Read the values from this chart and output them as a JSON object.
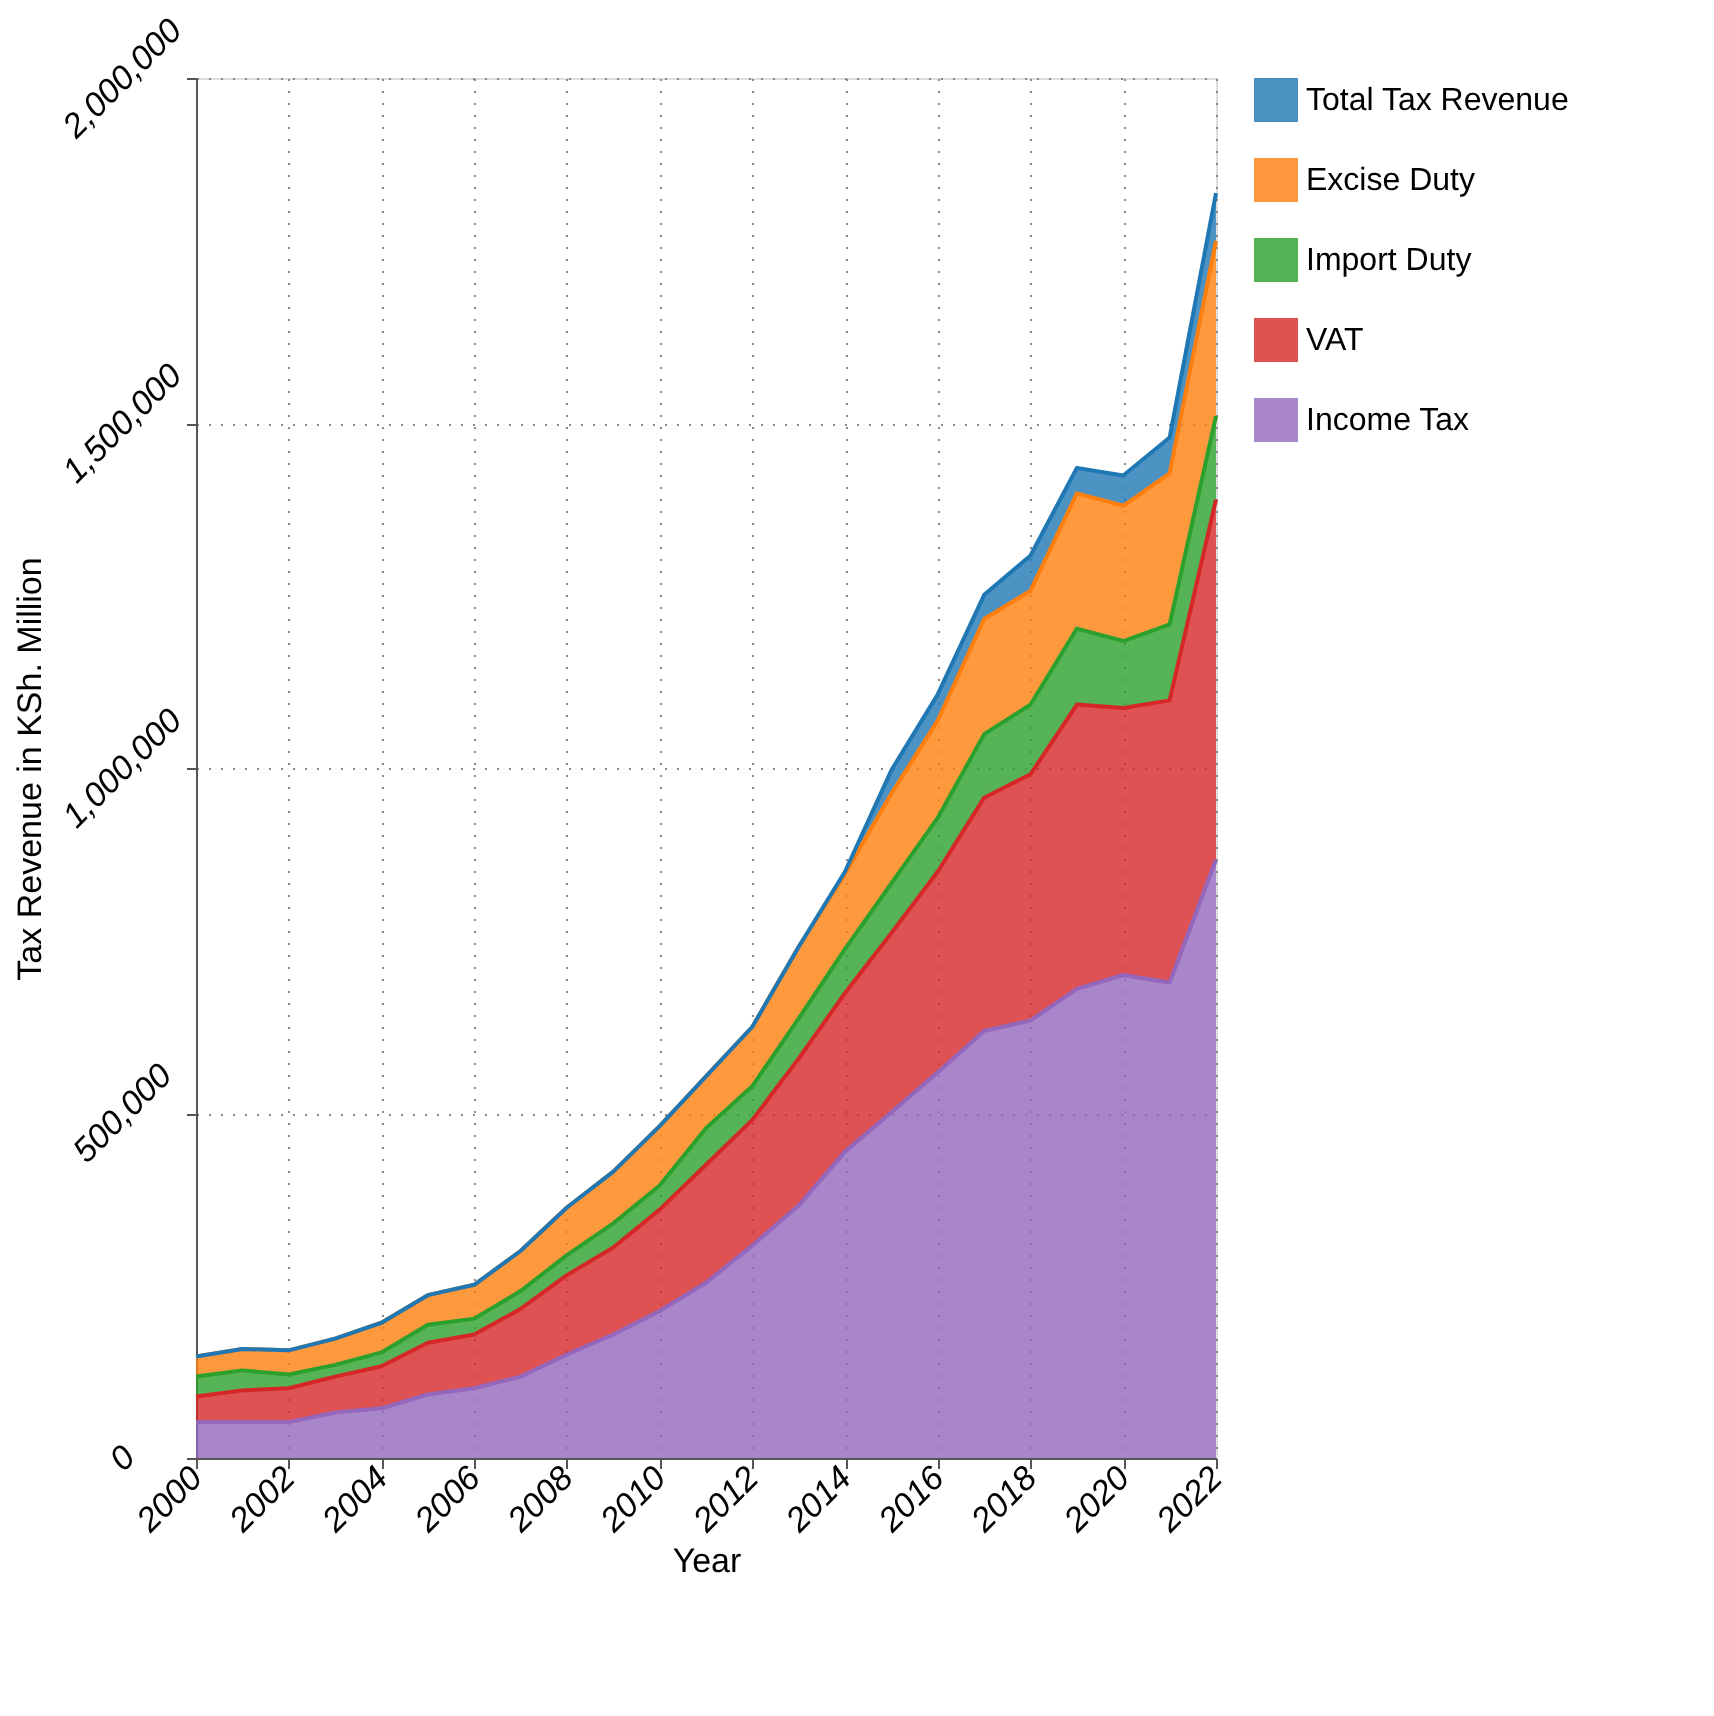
{
  "chart_data": {
    "type": "area",
    "stacked": true,
    "xlabel": "Year",
    "ylabel": "Tax Revenue in KSh. Million",
    "x": [
      2000,
      2001,
      2002,
      2003,
      2004,
      2005,
      2006,
      2007,
      2008,
      2009,
      2010,
      2011,
      2012,
      2013,
      2014,
      2015,
      2016,
      2017,
      2018,
      2019,
      2020,
      2021,
      2022
    ],
    "series": [
      {
        "name": "Income Tax",
        "color": "#9467bd",
        "values": [
          52000,
          52000,
          52000,
          66000,
          72000,
          92000,
          101000,
          118000,
          150000,
          179000,
          213000,
          254000,
          308000,
          366000,
          444000,
          501000,
          559000,
          619000,
          634000,
          680000,
          700000,
          689000,
          867000
        ]
      },
      {
        "name": "VAT",
        "color": "#d62728",
        "values": [
          37000,
          46000,
          49000,
          52000,
          61000,
          75000,
          78000,
          98000,
          115000,
          126000,
          147000,
          171000,
          182000,
          213000,
          230000,
          260000,
          291000,
          338000,
          357000,
          412000,
          387000,
          409000,
          522000
        ]
      },
      {
        "name": "Import Duty",
        "color": "#2ca02c",
        "values": [
          29000,
          29000,
          20000,
          17000,
          20000,
          26000,
          23000,
          26000,
          29000,
          35000,
          35000,
          53000,
          49000,
          58000,
          64000,
          72000,
          78000,
          92000,
          101000,
          110000,
          97000,
          110000,
          121000
        ]
      },
      {
        "name": "Excise Duty",
        "color": "#ff7f0e",
        "values": [
          29000,
          31000,
          35000,
          38000,
          43000,
          43000,
          49000,
          58000,
          69000,
          75000,
          86000,
          75000,
          86000,
          104000,
          109000,
          130000,
          141000,
          167000,
          165000,
          196000,
          196000,
          219000,
          254000
        ]
      },
      {
        "name": "Total Tax Revenue",
        "color": "#1f77b4",
        "values": [
          0,
          0,
          0,
          0,
          0,
          0,
          0,
          0,
          0,
          0,
          0,
          0,
          0,
          0,
          3000,
          34000,
          38000,
          35000,
          51000,
          37000,
          44000,
          52000,
          69000
        ]
      }
    ],
    "xlim": [
      2000,
      2022
    ],
    "xticks": [
      2000,
      2002,
      2004,
      2006,
      2008,
      2010,
      2012,
      2014,
      2016,
      2018,
      2020,
      2022
    ],
    "ylim": [
      0,
      2000000
    ],
    "yticks": [
      0,
      {
        "value": 500000,
        "label": "500,000"
      },
      {
        "value": 1000000,
        "label": "1,000,000"
      },
      {
        "value": 1500000,
        "label": "1,500,000"
      },
      {
        "value": 2000000,
        "label": "2,000,000"
      }
    ],
    "grid": true,
    "legend": "right"
  }
}
